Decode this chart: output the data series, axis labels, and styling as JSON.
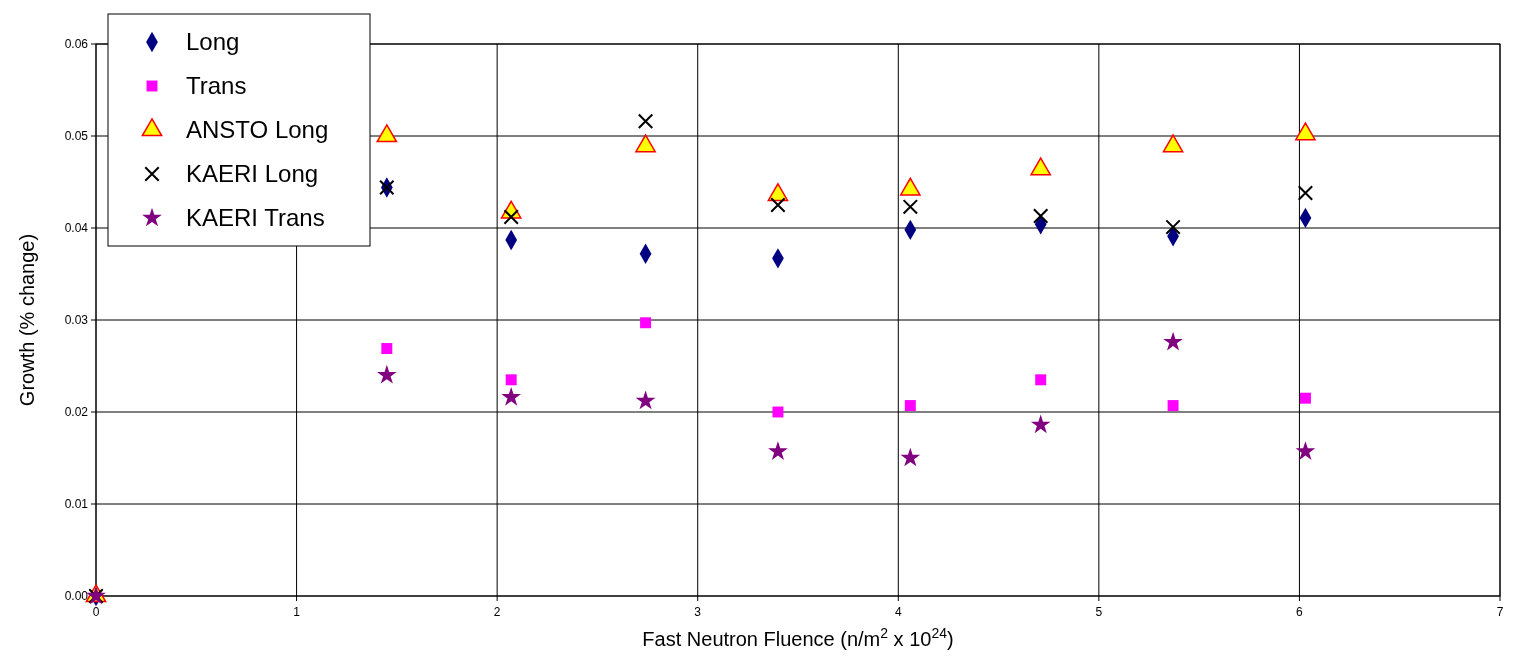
{
  "chart_data": {
    "type": "scatter",
    "xlabel": "Fast Neutron Fluence (n/m$^{2}$ x 10$^{24}$)",
    "ylabel": "Growth (% change)",
    "x": [
      0,
      1.45,
      2.07,
      2.74,
      3.4,
      4.06,
      4.71,
      5.37,
      6.03
    ],
    "series": [
      {
        "name": "Long",
        "color": "#000080",
        "marker": "diamond",
        "values": [
          0,
          0.0444,
          0.0387,
          0.0372,
          0.0367,
          0.0398,
          0.0404,
          0.0391,
          0.0411
        ]
      },
      {
        "name": "Trans",
        "color": "#ff00ff",
        "marker": "square",
        "values": [
          null,
          0.0269,
          0.0235,
          0.0297,
          0.02,
          0.0207,
          0.0235,
          0.0207,
          0.0215
        ]
      },
      {
        "name": "ANSTO Long",
        "color": "#ffff00",
        "marker": "triangle",
        "values": [
          0,
          0.05,
          0.0417,
          0.0489,
          0.0436,
          0.0442,
          0.0464,
          0.0489,
          0.0502
        ]
      },
      {
        "name": "KAERI Long",
        "color": "#000000",
        "marker": "cross",
        "values": [
          0,
          0.0444,
          0.0412,
          0.0516,
          0.0425,
          0.0423,
          0.0413,
          0.0401,
          0.0438
        ]
      },
      {
        "name": "KAERI Trans",
        "color": "#800080",
        "marker": "star",
        "values": [
          0,
          0.024,
          0.0216,
          0.0212,
          0.0157,
          0.015,
          0.0186,
          0.0276,
          0.0157
        ]
      }
    ],
    "xlim": [
      0,
      7
    ],
    "xticks": [
      0,
      1,
      2,
      3,
      4,
      5,
      6,
      7
    ],
    "ylim": [
      0,
      0.06
    ],
    "yticks": [
      {
        "value": 0,
        "label": "0.00"
      },
      0.01,
      0.02,
      0.03,
      0.04,
      0.05,
      0.06
    ],
    "grid": true,
    "legend": "top left"
  }
}
